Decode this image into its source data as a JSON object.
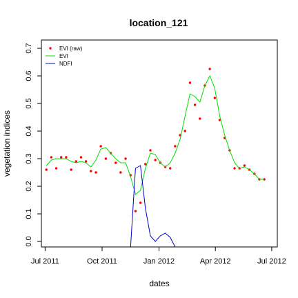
{
  "chart_data": {
    "type": "line",
    "title": "location_121",
    "xlabel": "dates",
    "ylabel": "vegetation indices",
    "xlim": [
      "2011-06-25",
      "2012-07-10"
    ],
    "ylim": [
      -0.02,
      0.73
    ],
    "x_ticks": [
      {
        "date": "2011-07-01",
        "label": "Jul 2011"
      },
      {
        "date": "2011-10-01",
        "label": "Oct 2011"
      },
      {
        "date": "2012-01-01",
        "label": "Jan 2012"
      },
      {
        "date": "2012-04-01",
        "label": "Apr 2012"
      },
      {
        "date": "2012-07-01",
        "label": "Jul 2012"
      }
    ],
    "y_ticks": [
      {
        "value": 0.0,
        "label": "0.0"
      },
      {
        "value": 0.1,
        "label": "0.1"
      },
      {
        "value": 0.2,
        "label": "0.2"
      },
      {
        "value": 0.3,
        "label": "0.3"
      },
      {
        "value": 0.4,
        "label": "0.4"
      },
      {
        "value": 0.5,
        "label": "0.5"
      },
      {
        "value": 0.6,
        "label": "0.6"
      },
      {
        "value": 0.7,
        "label": "0.7"
      }
    ],
    "legend_position": "top-left",
    "series": [
      {
        "name": "EVI (raw)",
        "kind": "points",
        "color": "#ff0000",
        "points": [
          [
            "2011-07-03",
            0.26
          ],
          [
            "2011-07-11",
            0.305
          ],
          [
            "2011-07-19",
            0.265
          ],
          [
            "2011-07-27",
            0.305
          ],
          [
            "2011-08-04",
            0.305
          ],
          [
            "2011-08-12",
            0.26
          ],
          [
            "2011-08-20",
            0.29
          ],
          [
            "2011-08-28",
            0.305
          ],
          [
            "2011-09-05",
            0.29
          ],
          [
            "2011-09-13",
            0.255
          ],
          [
            "2011-09-21",
            0.25
          ],
          [
            "2011-09-29",
            0.345
          ],
          [
            "2011-10-07",
            0.3
          ],
          [
            "2011-10-15",
            0.32
          ],
          [
            "2011-10-23",
            0.285
          ],
          [
            "2011-10-31",
            0.25
          ],
          [
            "2011-11-08",
            0.3
          ],
          [
            "2011-11-16",
            0.24
          ],
          [
            "2011-11-24",
            0.11
          ],
          [
            "2011-12-02",
            0.14
          ],
          [
            "2011-12-10",
            0.28
          ],
          [
            "2011-12-18",
            0.33
          ],
          [
            "2011-12-26",
            0.295
          ],
          [
            "2012-01-03",
            0.285
          ],
          [
            "2012-01-11",
            0.27
          ],
          [
            "2012-01-19",
            0.265
          ],
          [
            "2012-01-27",
            0.345
          ],
          [
            "2012-02-04",
            0.385
          ],
          [
            "2012-02-12",
            0.4
          ],
          [
            "2012-02-20",
            0.575
          ],
          [
            "2012-02-28",
            0.495
          ],
          [
            "2012-03-07",
            0.445
          ],
          [
            "2012-03-15",
            0.565
          ],
          [
            "2012-03-23",
            0.625
          ],
          [
            "2012-03-31",
            0.52
          ],
          [
            "2012-04-08",
            0.44
          ],
          [
            "2012-04-16",
            0.375
          ],
          [
            "2012-04-24",
            0.33
          ],
          [
            "2012-05-02",
            0.265
          ],
          [
            "2012-05-10",
            0.265
          ],
          [
            "2012-05-18",
            0.275
          ],
          [
            "2012-05-26",
            0.26
          ],
          [
            "2012-06-03",
            0.245
          ],
          [
            "2012-06-11",
            0.225
          ],
          [
            "2012-06-19",
            0.225
          ]
        ]
      },
      {
        "name": "EVI",
        "kind": "line",
        "color": "#00dd00",
        "points": [
          [
            "2011-07-03",
            0.275
          ],
          [
            "2011-07-11",
            0.295
          ],
          [
            "2011-07-19",
            0.3
          ],
          [
            "2011-07-27",
            0.3
          ],
          [
            "2011-08-04",
            0.3
          ],
          [
            "2011-08-12",
            0.29
          ],
          [
            "2011-08-20",
            0.285
          ],
          [
            "2011-08-28",
            0.29
          ],
          [
            "2011-09-05",
            0.285
          ],
          [
            "2011-09-13",
            0.27
          ],
          [
            "2011-09-21",
            0.295
          ],
          [
            "2011-09-29",
            0.335
          ],
          [
            "2011-10-07",
            0.34
          ],
          [
            "2011-10-15",
            0.32
          ],
          [
            "2011-10-23",
            0.3
          ],
          [
            "2011-10-31",
            0.285
          ],
          [
            "2011-11-08",
            0.285
          ],
          [
            "2011-11-16",
            0.235
          ],
          [
            "2011-11-24",
            0.17
          ],
          [
            "2011-12-02",
            0.185
          ],
          [
            "2011-12-10",
            0.265
          ],
          [
            "2011-12-18",
            0.32
          ],
          [
            "2011-12-26",
            0.315
          ],
          [
            "2012-01-03",
            0.285
          ],
          [
            "2012-01-11",
            0.27
          ],
          [
            "2012-01-19",
            0.285
          ],
          [
            "2012-01-27",
            0.32
          ],
          [
            "2012-02-04",
            0.37
          ],
          [
            "2012-02-12",
            0.455
          ],
          [
            "2012-02-20",
            0.535
          ],
          [
            "2012-02-28",
            0.525
          ],
          [
            "2012-03-07",
            0.505
          ],
          [
            "2012-03-15",
            0.565
          ],
          [
            "2012-03-23",
            0.6
          ],
          [
            "2012-03-31",
            0.555
          ],
          [
            "2012-04-08",
            0.455
          ],
          [
            "2012-04-16",
            0.385
          ],
          [
            "2012-04-24",
            0.33
          ],
          [
            "2012-05-02",
            0.285
          ],
          [
            "2012-05-10",
            0.265
          ],
          [
            "2012-05-18",
            0.27
          ],
          [
            "2012-05-26",
            0.26
          ],
          [
            "2012-06-03",
            0.245
          ],
          [
            "2012-06-11",
            0.225
          ],
          [
            "2012-06-19",
            0.225
          ]
        ]
      },
      {
        "name": "NDFI",
        "kind": "line",
        "color": "#0000cc",
        "points": [
          [
            "2011-11-16",
            -0.02
          ],
          [
            "2011-11-24",
            0.265
          ],
          [
            "2011-12-02",
            0.275
          ],
          [
            "2011-12-10",
            0.12
          ],
          [
            "2011-12-18",
            0.02
          ],
          [
            "2011-12-26",
            0.0
          ],
          [
            "2012-01-03",
            0.02
          ],
          [
            "2012-01-11",
            0.03
          ],
          [
            "2012-01-19",
            0.015
          ],
          [
            "2012-01-27",
            -0.02
          ]
        ]
      }
    ]
  }
}
